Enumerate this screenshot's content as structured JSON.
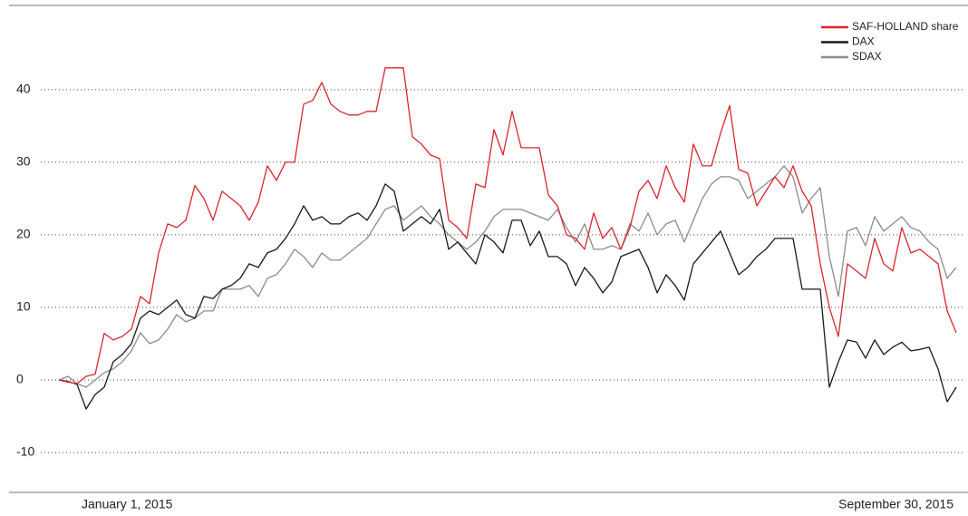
{
  "chart_data": {
    "type": "line",
    "categories": [
      "January 1, 2015",
      null,
      null,
      null,
      null,
      null,
      null,
      null,
      null,
      null,
      null,
      null,
      null,
      null,
      null,
      null,
      null,
      null,
      null,
      null,
      null,
      null,
      null,
      null,
      null,
      null,
      null,
      null,
      null,
      null,
      null,
      null,
      null,
      null,
      null,
      null,
      null,
      null,
      null,
      null,
      null,
      null,
      null,
      null,
      null,
      null,
      null,
      null,
      null,
      null,
      null,
      null,
      null,
      null,
      null,
      null,
      null,
      null,
      null,
      null,
      null,
      null,
      null,
      null,
      null,
      null,
      null,
      null,
      null,
      null,
      null,
      null,
      null,
      null,
      null,
      null,
      null,
      null,
      null,
      null,
      null,
      null,
      null,
      null,
      null,
      null,
      null,
      null,
      null,
      null,
      null,
      null,
      null,
      null,
      null,
      null,
      null,
      null,
      null,
      "September 30, 2015"
    ],
    "series": [
      {
        "name": "SAF-HOLLAND share",
        "color": "#d9262e",
        "values": [
          0,
          -0.3,
          -0.5,
          0.5,
          0.8,
          6.4,
          5.5,
          6,
          7,
          11.5,
          10.5,
          17.5,
          21.5,
          21,
          22,
          26.8,
          25,
          22,
          26,
          25,
          24,
          22,
          24.5,
          29.5,
          27.5,
          30,
          30,
          38,
          38.5,
          41,
          38,
          37,
          36.5,
          36.5,
          37,
          37,
          43,
          43,
          43,
          33.5,
          32.5,
          31,
          30.5,
          22,
          21,
          19.5,
          27,
          26.5,
          34.5,
          31,
          37,
          32,
          32,
          32,
          25.5,
          24,
          20,
          19.5,
          18,
          23,
          19.5,
          21,
          18,
          21,
          26,
          27.5,
          25,
          29.5,
          26.5,
          24.5,
          32.5,
          29.5,
          29.5,
          34,
          37.8,
          29,
          28.5,
          24,
          26,
          28,
          26.5,
          29.5,
          26,
          24,
          16,
          10,
          6,
          16,
          15,
          14,
          19.5,
          16,
          15,
          21,
          17.5,
          18,
          17,
          16,
          9.5,
          6.5
        ]
      },
      {
        "name": "DAX",
        "color": "#1a1a1a",
        "values": [
          0,
          -0.2,
          -0.6,
          -4,
          -2,
          -1,
          2.5,
          3.5,
          5,
          8.5,
          9.5,
          9,
          10,
          11,
          9,
          8.5,
          11.5,
          11.2,
          12.5,
          13,
          14,
          16,
          15.5,
          17.5,
          18,
          19.5,
          21.5,
          24,
          22,
          22.5,
          21.5,
          21.5,
          22.5,
          23,
          22,
          24,
          27,
          26,
          20.5,
          21.5,
          22.5,
          21.5,
          23.5,
          18,
          19,
          17.5,
          16,
          20,
          19,
          17.5,
          22,
          22,
          18.5,
          20.5,
          17,
          17,
          16,
          13,
          15.5,
          14,
          12,
          13.5,
          17,
          17.5,
          18,
          15.5,
          12,
          14.5,
          13,
          11,
          16,
          17.5,
          19,
          20.5,
          17.5,
          14.5,
          15.5,
          17,
          18,
          19.5,
          19.5,
          19.5,
          12.5,
          12.5,
          12.5,
          -1,
          2.5,
          5.5,
          5.2,
          3,
          5.5,
          3.5,
          4.5,
          5.2,
          4,
          4.2,
          4.5,
          1.5,
          -3,
          -1
        ]
      },
      {
        "name": "SDAX",
        "color": "#8c8c8c",
        "values": [
          0,
          0.5,
          -0.5,
          -1,
          0,
          1,
          1.5,
          2.5,
          4,
          6.5,
          5,
          5.5,
          7,
          9,
          8,
          8.5,
          9.5,
          9.5,
          12.5,
          12.5,
          12.5,
          13,
          11.5,
          14,
          14.5,
          16,
          18,
          17,
          15.5,
          17.5,
          16.5,
          16.5,
          17.5,
          18.5,
          19.5,
          21.5,
          23.5,
          24,
          22,
          23,
          24,
          22.5,
          21.5,
          20,
          19,
          18,
          19,
          20.5,
          22.5,
          23.5,
          23.5,
          23.5,
          23,
          22.5,
          22,
          23.5,
          21,
          19,
          21.5,
          18,
          18,
          18.5,
          18,
          21.5,
          20.5,
          23,
          20,
          21.5,
          22,
          19,
          22,
          25,
          27,
          28,
          28,
          27.5,
          25,
          26,
          27,
          28,
          29.5,
          28,
          23,
          25,
          26.5,
          17,
          11.5,
          20.5,
          21,
          18.5,
          22.5,
          20.5,
          21.5,
          22.5,
          21,
          20.5,
          19,
          18,
          14,
          15.5
        ]
      }
    ],
    "ylim": [
      -15.5,
      51.6
    ],
    "yticks": [
      -10,
      0,
      10,
      20,
      30,
      40
    ],
    "grid": true
  }
}
